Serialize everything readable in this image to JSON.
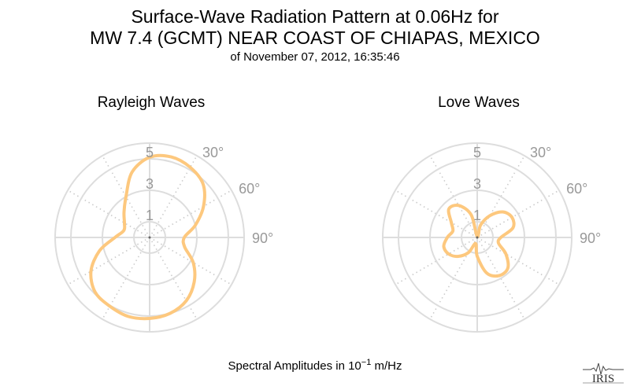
{
  "title": {
    "line1": "Surface-Wave Radiation Pattern at 0.06Hz for",
    "line2": "MW 7.4 (GCMT) NEAR COAST OF CHIAPAS, MEXICO",
    "subtitle": "of November 07, 2012, 16:35:46"
  },
  "footer": {
    "prefix": "Spectral Amplitudes in ",
    "base": "10",
    "exponent": "−1",
    "unit": " m/Hz"
  },
  "logo_text": "IRIS",
  "colors": {
    "curve": "#FDC87E",
    "grid": "#DDDDDD",
    "dotted": "#CCCCCC",
    "tick_text": "#999999"
  },
  "chart_data": [
    {
      "type": "polar-line",
      "title": "Rayleigh Waves",
      "radial_ticks": [
        "1",
        "3",
        "5"
      ],
      "radial_values": [
        1,
        3,
        5
      ],
      "rlim": [
        0,
        6
      ],
      "angle_ticks": [
        "30°",
        "60°",
        "90°"
      ],
      "angle_tick_values": [
        30,
        60,
        90
      ],
      "grid": true,
      "series": [
        {
          "azimuth_deg": [
            0,
            15,
            30,
            45,
            60,
            75,
            90,
            105,
            120,
            135,
            150,
            165,
            180,
            195,
            210,
            225,
            240,
            255,
            270,
            285,
            300,
            315,
            330,
            345
          ],
          "amplitude": [
            5.1,
            5.3,
            5.15,
            4.8,
            3.95,
            3.0,
            2.2,
            2.3,
            3.2,
            4.0,
            4.65,
            5.0,
            5.15,
            5.2,
            5.05,
            4.9,
            4.3,
            3.3,
            2.2,
            1.7,
            1.85,
            2.3,
            3.0,
            4.3
          ]
        }
      ]
    },
    {
      "type": "polar-line",
      "title": "Love Waves",
      "radial_ticks": [
        "1",
        "3",
        "5"
      ],
      "radial_values": [
        1,
        3,
        5
      ],
      "rlim": [
        0,
        6
      ],
      "angle_ticks": [
        "30°",
        "60°",
        "90°"
      ],
      "angle_tick_values": [
        30,
        60,
        90
      ],
      "grid": true,
      "series": [
        {
          "azimuth_deg": [
            0,
            15,
            30,
            45,
            60,
            75,
            90,
            105,
            120,
            135,
            150,
            165,
            180,
            195,
            210,
            225,
            240,
            255,
            270,
            285,
            300,
            315,
            330,
            345
          ],
          "amplitude": [
            0.05,
            0.8,
            1.6,
            2.3,
            2.55,
            2.35,
            1.5,
            1.4,
            2.1,
            2.75,
            2.8,
            2.35,
            1.2,
            0.4,
            1.1,
            1.7,
            2.1,
            2.2,
            1.9,
            1.6,
            1.9,
            2.55,
            2.35,
            1.5
          ]
        }
      ]
    }
  ]
}
